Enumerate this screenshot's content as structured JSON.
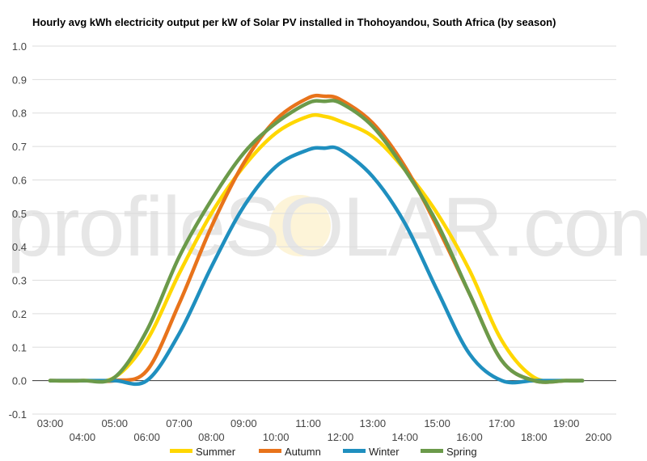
{
  "chart_data": {
    "type": "line",
    "title": "Hourly avg kWh electricity output per kW of Solar PV installed in Thohoyandou, South Africa (by season)",
    "xlabel": "",
    "ylabel": "",
    "ylim": [
      -0.1,
      1.0
    ],
    "yticks": [
      "-0.1",
      "0.0",
      "0.1",
      "0.2",
      "0.3",
      "0.4",
      "0.5",
      "0.6",
      "0.7",
      "0.8",
      "0.9",
      "1.0"
    ],
    "xlim": [
      3,
      20
    ],
    "x": [
      3,
      4,
      5,
      6,
      7,
      8,
      9,
      10,
      11,
      11.5,
      12,
      13,
      14,
      15,
      16,
      17,
      18,
      19,
      19.5
    ],
    "xticks_upper": [
      "03:00",
      "05:00",
      "07:00",
      "09:00",
      "11:00",
      "13:00",
      "15:00",
      "17:00",
      "19:00"
    ],
    "xticks_lower": [
      "04:00",
      "06:00",
      "08:00",
      "10:00",
      "12:00",
      "14:00",
      "16:00",
      "18:00",
      "20:00"
    ],
    "grid": true,
    "legend_position": "bottom",
    "series": [
      {
        "name": "Summer",
        "color": "#FFD700",
        "values": [
          0.0,
          0.0,
          0.01,
          0.12,
          0.32,
          0.5,
          0.64,
          0.74,
          0.79,
          0.79,
          0.775,
          0.73,
          0.63,
          0.5,
          0.33,
          0.12,
          0.01,
          0.0,
          0.0
        ]
      },
      {
        "name": "Autumn",
        "color": "#E8731B",
        "values": [
          0.0,
          0.0,
          0.0,
          0.03,
          0.23,
          0.46,
          0.65,
          0.78,
          0.845,
          0.85,
          0.84,
          0.77,
          0.64,
          0.46,
          0.26,
          0.06,
          0.0,
          0.0,
          0.0
        ]
      },
      {
        "name": "Winter",
        "color": "#1F8FBF",
        "values": [
          0.0,
          0.0,
          0.0,
          0.0,
          0.14,
          0.34,
          0.52,
          0.64,
          0.69,
          0.695,
          0.69,
          0.61,
          0.47,
          0.27,
          0.08,
          0.0,
          0.0,
          0.0,
          0.0
        ]
      },
      {
        "name": "Spring",
        "color": "#6B9A4A",
        "values": [
          0.0,
          0.0,
          0.01,
          0.15,
          0.37,
          0.54,
          0.68,
          0.77,
          0.83,
          0.835,
          0.83,
          0.76,
          0.63,
          0.47,
          0.26,
          0.06,
          0.0,
          0.0,
          0.0
        ]
      }
    ],
    "watermark": "profileSOLAR.com"
  }
}
